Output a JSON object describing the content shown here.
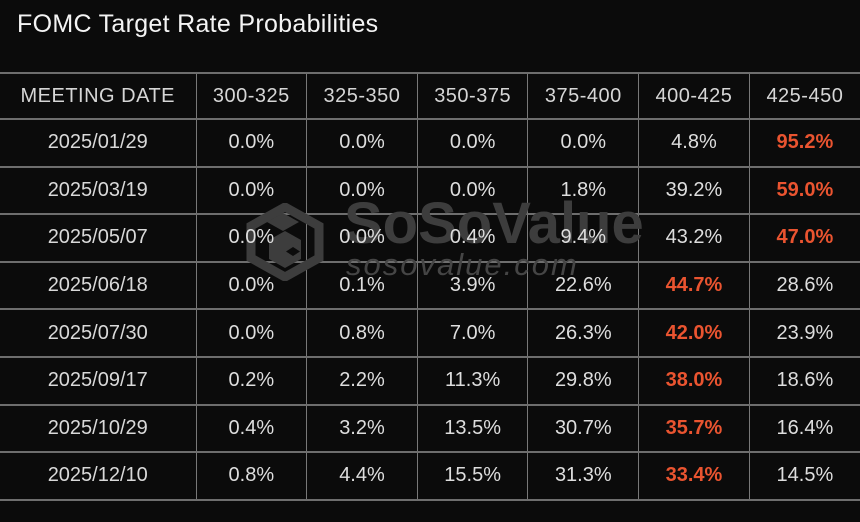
{
  "chart_data": {
    "type": "table",
    "title": "FOMC Target Rate Probabilities",
    "columns": [
      "MEETING DATE",
      "300-325",
      "325-350",
      "350-375",
      "375-400",
      "400-425",
      "425-450"
    ],
    "rows": [
      {
        "date": "2025/01/29",
        "values": [
          "0.0%",
          "0.0%",
          "0.0%",
          "0.0%",
          "4.8%",
          "95.2%"
        ],
        "highlight_index": 5
      },
      {
        "date": "2025/03/19",
        "values": [
          "0.0%",
          "0.0%",
          "0.0%",
          "1.8%",
          "39.2%",
          "59.0%"
        ],
        "highlight_index": 5
      },
      {
        "date": "2025/05/07",
        "values": [
          "0.0%",
          "0.0%",
          "0.4%",
          "9.4%",
          "43.2%",
          "47.0%"
        ],
        "highlight_index": 5
      },
      {
        "date": "2025/06/18",
        "values": [
          "0.0%",
          "0.1%",
          "3.9%",
          "22.6%",
          "44.7%",
          "28.6%"
        ],
        "highlight_index": 4
      },
      {
        "date": "2025/07/30",
        "values": [
          "0.0%",
          "0.8%",
          "7.0%",
          "26.3%",
          "42.0%",
          "23.9%"
        ],
        "highlight_index": 4
      },
      {
        "date": "2025/09/17",
        "values": [
          "0.2%",
          "2.2%",
          "11.3%",
          "29.8%",
          "38.0%",
          "18.6%"
        ],
        "highlight_index": 4
      },
      {
        "date": "2025/10/29",
        "values": [
          "0.4%",
          "3.2%",
          "13.5%",
          "30.7%",
          "35.7%",
          "16.4%"
        ],
        "highlight_index": 4
      },
      {
        "date": "2025/12/10",
        "values": [
          "0.8%",
          "4.4%",
          "15.5%",
          "31.3%",
          "33.4%",
          "14.5%"
        ],
        "highlight_index": 4
      }
    ],
    "layout_hints": {
      "grid": true,
      "highlight_meaning": "highest probability cell per row shown in orange"
    }
  },
  "watermark": {
    "brand": "SoSoValue",
    "domain": "sosovalue.com",
    "logo_icon": "sosovalue-cube-logo"
  },
  "colors": {
    "background": "#0b0b0b",
    "grid_border": "#6e6e6e",
    "text": "#dedede",
    "highlight": "#ea5430",
    "watermark": "#3d3d3d"
  }
}
